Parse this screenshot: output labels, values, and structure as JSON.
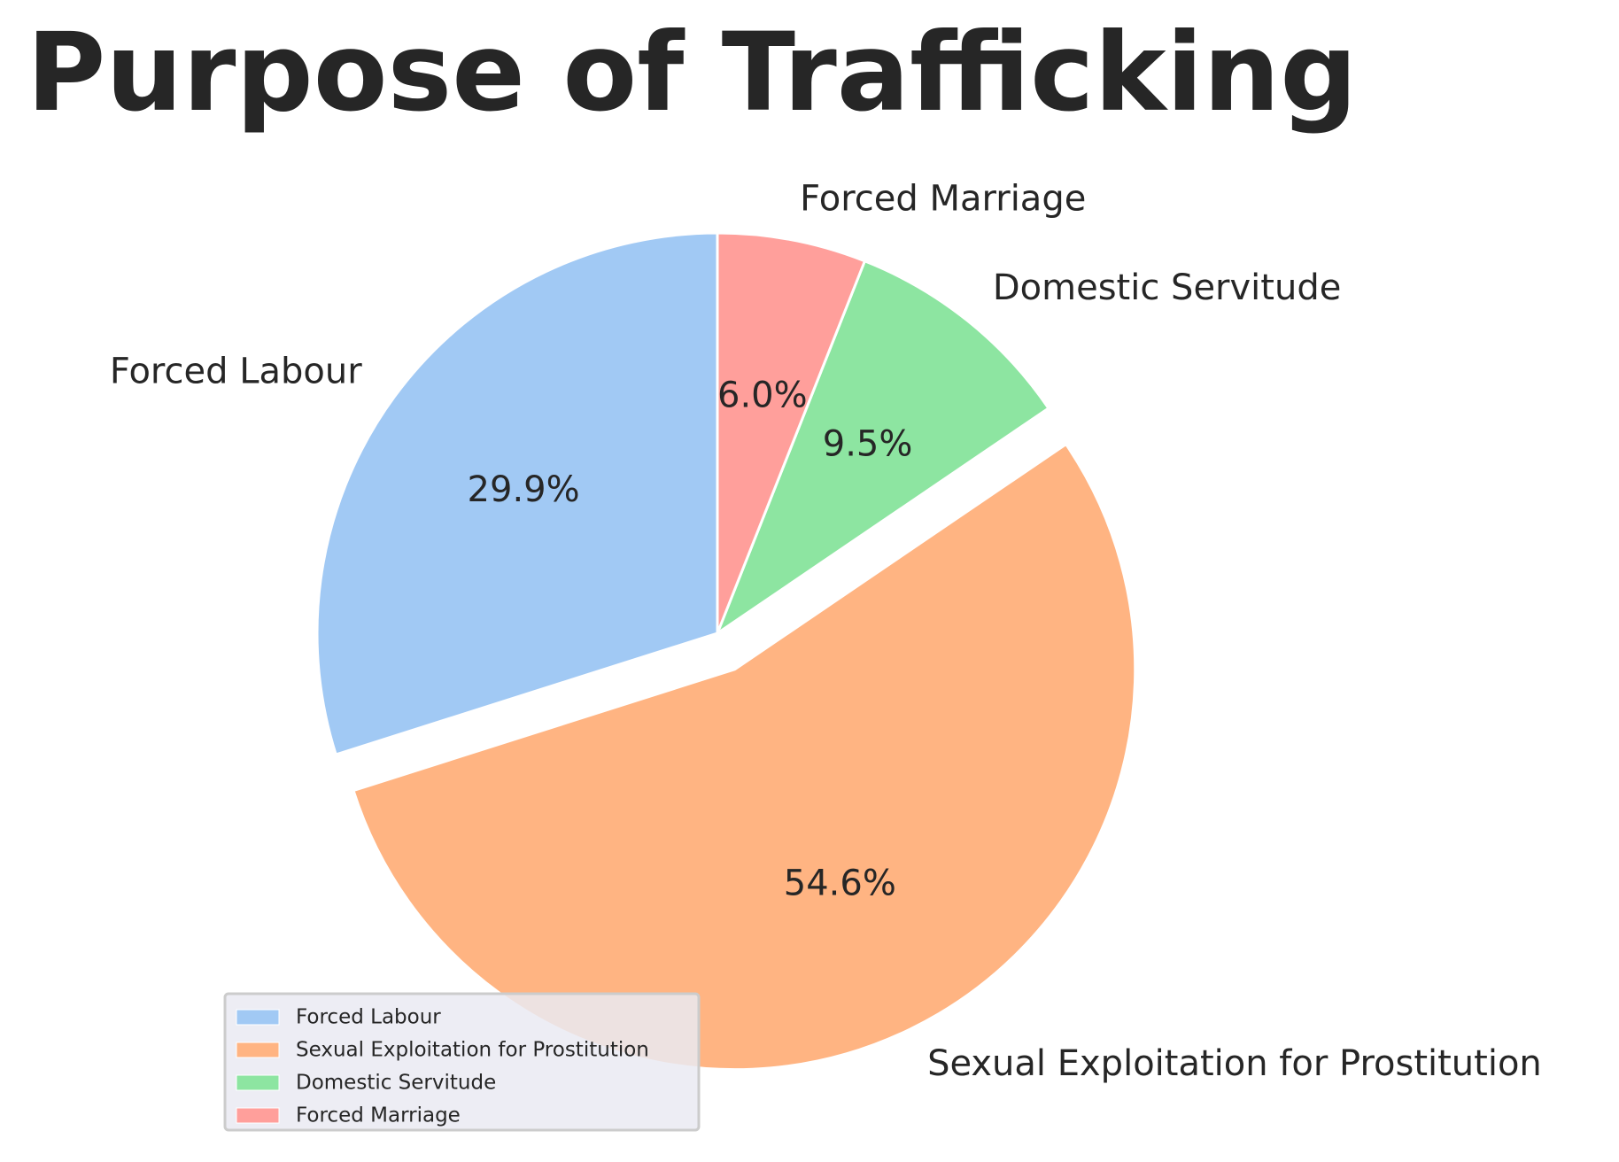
{
  "chart_data": {
    "type": "pie",
    "title": "Purpose of Trafficking",
    "categories": [
      "Forced Labour",
      "Sexual Exploitation for Prostitution",
      "Domestic Servitude",
      "Forced Marriage"
    ],
    "values": [
      29.9,
      54.6,
      9.5,
      6.0
    ],
    "percent_labels": [
      "29.9%",
      "54.6%",
      "9.5%",
      "6.0%"
    ],
    "colors": [
      "#a1c9f4",
      "#ffb482",
      "#8de5a1",
      "#ff9f9b"
    ],
    "exploded": [
      "Sexual Exploitation for Prostitution"
    ],
    "start_angle_deg": 90,
    "direction": "counterclockwise",
    "legend": {
      "position": "lower-left",
      "entries": [
        "Forced Labour",
        "Sexual Exploitation for Prostitution",
        "Domestic Servitude",
        "Forced Marriage"
      ]
    }
  }
}
